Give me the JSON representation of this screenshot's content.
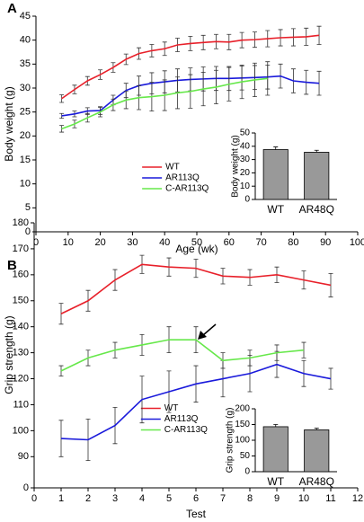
{
  "chart_data": [
    {
      "type": "line",
      "panel": "A",
      "xlabel": "Age (wk)",
      "ylabel": "Body weight (g)",
      "xlim": [
        0,
        100
      ],
      "xticks": [
        0,
        10,
        20,
        30,
        40,
        50,
        60,
        70,
        80,
        90,
        100
      ],
      "ylim": [
        0,
        45
      ],
      "yticks": [
        0,
        5,
        10,
        15,
        20,
        25,
        30,
        35,
        40,
        45
      ],
      "legend": "center",
      "x": [
        8,
        12,
        16,
        20,
        24,
        28,
        32,
        36,
        40,
        44,
        48,
        52,
        56,
        60,
        64,
        68,
        72,
        76,
        80,
        84,
        88
      ],
      "series": [
        {
          "name": "WT",
          "color": "#e8202a",
          "values": [
            27.8,
            29.7,
            31.5,
            32.8,
            34.3,
            36,
            37.2,
            37.8,
            38.2,
            39,
            39.3,
            39.5,
            39.7,
            39.6,
            40,
            40.1,
            40.3,
            40.5,
            40.6,
            40.7,
            41
          ],
          "errors": [
            0.8,
            0.9,
            0.9,
            1,
            1,
            1.1,
            1.2,
            1.3,
            1.4,
            1.4,
            1.5,
            1.5,
            1.5,
            1.6,
            1.6,
            1.6,
            1.7,
            1.7,
            1.8,
            1.8,
            1.9
          ]
        },
        {
          "name": "AR113Q",
          "color": "#1a1adb",
          "values": [
            24.2,
            24.6,
            25.2,
            25.3,
            27.5,
            29.5,
            30.5,
            31,
            31.3,
            31.6,
            31.8,
            31.9,
            32,
            32,
            32.1,
            32.2,
            32.3,
            32.5,
            31.5,
            31.2,
            31
          ],
          "errors": [
            0.5,
            0.6,
            0.7,
            0.8,
            1,
            1.5,
            2,
            2.2,
            2.3,
            2.4,
            2.4,
            2.5,
            2.5,
            2.5,
            2.5,
            2.5,
            2.5,
            2.5,
            2.5,
            2.5,
            2.5
          ]
        },
        {
          "name": "C-AR113Q",
          "color": "#66e84a",
          "values": [
            21.5,
            22.5,
            23.8,
            25,
            26.5,
            27.5,
            28,
            28.2,
            28.5,
            29,
            29.3,
            29.8,
            30.2,
            30.8,
            31.3,
            31.7,
            32,
            null,
            null,
            null,
            null
          ],
          "errors": [
            0.7,
            0.8,
            0.9,
            1,
            1.2,
            1.8,
            2.5,
            3,
            3.2,
            3.3,
            3.5,
            3.5,
            3.5,
            3.5,
            3.5,
            3.5,
            3.5,
            null,
            null,
            null,
            null
          ]
        }
      ]
    },
    {
      "type": "bar",
      "ylabel": "Body weight (g)",
      "ylim": [
        0,
        50
      ],
      "yticks": [
        0,
        10,
        20,
        30,
        40,
        50
      ],
      "categories": [
        "WT",
        "AR48Q"
      ],
      "values": [
        37.5,
        35.5
      ],
      "errors": [
        2,
        1.5
      ],
      "color": "#999999"
    },
    {
      "type": "line",
      "panel": "B",
      "xlabel": "Test",
      "ylabel": "Grip strength (g)",
      "xlim": [
        0,
        12
      ],
      "xticks": [
        0,
        1,
        2,
        3,
        4,
        5,
        6,
        7,
        8,
        9,
        10,
        11,
        12
      ],
      "ylim": [
        0,
        180
      ],
      "y_break": [
        0,
        78
      ],
      "yticks": [
        0,
        90,
        100,
        110,
        120,
        130,
        140,
        150,
        160,
        170,
        180
      ],
      "legend": "center",
      "x": [
        1,
        2,
        3,
        4,
        5,
        6,
        7,
        8,
        9,
        10,
        11
      ],
      "series": [
        {
          "name": "WT",
          "color": "#e8202a",
          "values": [
            145,
            150,
            158,
            164,
            163,
            162.5,
            159.5,
            159,
            160,
            158,
            156
          ],
          "errors": [
            4,
            4,
            4,
            3.5,
            3.5,
            3.5,
            3,
            3,
            3,
            3.5,
            4.5
          ]
        },
        {
          "name": "AR113Q",
          "color": "#1a1adb",
          "values": [
            97,
            96.5,
            102,
            112,
            115,
            118,
            120,
            122,
            125.5,
            122,
            120
          ],
          "errors": [
            7,
            8,
            7,
            9,
            8,
            7,
            7,
            7,
            5,
            5,
            4
          ]
        },
        {
          "name": "C-AR113Q",
          "color": "#66e84a",
          "values": [
            123,
            128,
            131,
            133,
            135,
            135,
            127,
            128,
            130,
            131,
            null
          ],
          "errors": [
            2,
            3,
            3,
            4,
            5,
            5,
            3,
            3,
            3,
            3,
            null
          ]
        }
      ]
    },
    {
      "type": "bar",
      "ylabel": "Grip strength (g)",
      "ylim": [
        0,
        200
      ],
      "yticks": [
        0,
        50,
        100,
        150,
        200
      ],
      "categories": [
        "WT",
        "AR48Q"
      ],
      "values": [
        143,
        133
      ],
      "errors": [
        7,
        5
      ],
      "color": "#999999"
    }
  ]
}
